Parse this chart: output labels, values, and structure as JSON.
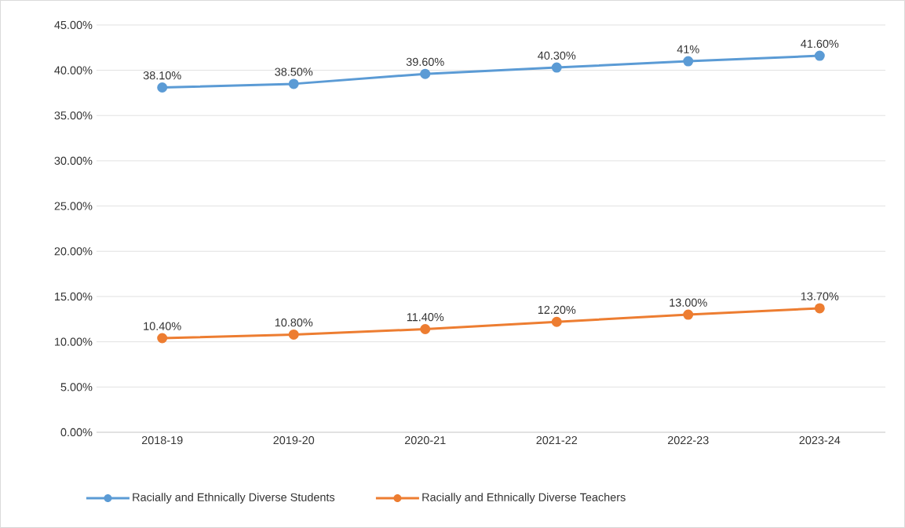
{
  "chart_data": {
    "type": "line",
    "categories": [
      "2018-19",
      "2019-20",
      "2020-21",
      "2021-22",
      "2022-23",
      "2023-24"
    ],
    "series": [
      {
        "name": "Racially and Ethnically Diverse Students",
        "color": "#5b9bd5",
        "values": [
          38.1,
          38.5,
          39.6,
          40.3,
          41,
          41.6
        ],
        "value_labels": [
          "38.10%",
          "38.50%",
          "39.60%",
          "40.30%",
          "41%",
          "41.60%"
        ]
      },
      {
        "name": "Racially and Ethnically Diverse Teachers",
        "color": "#ed7d31",
        "values": [
          10.4,
          10.8,
          11.4,
          12.2,
          13.0,
          13.7
        ],
        "value_labels": [
          "10.40%",
          "10.80%",
          "11.40%",
          "12.20%",
          "13.00%",
          "13.70%"
        ]
      }
    ],
    "ylim": [
      0,
      45
    ],
    "yticks": [
      {
        "value": 0,
        "label": "0.00%"
      },
      {
        "value": 5,
        "label": "5.00%"
      },
      {
        "value": 10,
        "label": "10.00%"
      },
      {
        "value": 15,
        "label": "15.00%"
      },
      {
        "value": 20,
        "label": "20.00%"
      },
      {
        "value": 25,
        "label": "25.00%"
      },
      {
        "value": 30,
        "label": "30.00%"
      },
      {
        "value": 35,
        "label": "35.00%"
      },
      {
        "value": 40,
        "label": "40.00%"
      },
      {
        "value": 45,
        "label": "45.00%"
      }
    ],
    "grid": "y",
    "legend": "bottom",
    "marker": "circle",
    "line_style": "solid"
  }
}
